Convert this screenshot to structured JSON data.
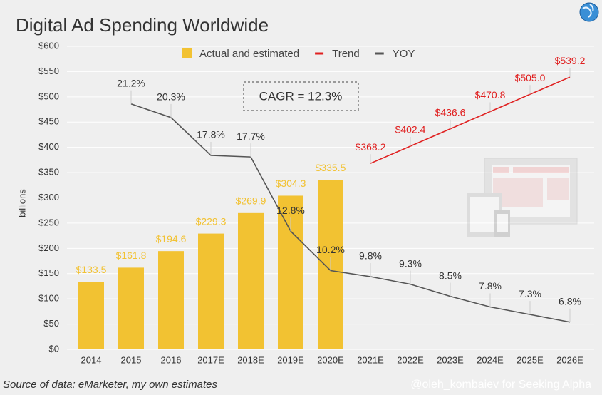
{
  "chart_data": {
    "type": "bar",
    "title": "Digital Ad Spending Worldwide",
    "y_label": "billions",
    "annotation": "CAGR = 12.3%",
    "source": "Source of data: eMarketer, my own estimates",
    "watermark": "@oleh_kombaiev for Seeking Alpha",
    "categories": [
      "2014",
      "2015",
      "2016",
      "2017E",
      "2018E",
      "2019E",
      "2020E",
      "2021E",
      "2022E",
      "2023E",
      "2024E",
      "2025E",
      "2026E"
    ],
    "series": [
      {
        "name": "Actual and estimated",
        "type": "bar",
        "color": "#f2c232",
        "values": [
          133.5,
          161.8,
          194.6,
          229.3,
          269.9,
          304.3,
          335.5,
          null,
          null,
          null,
          null,
          null,
          null
        ],
        "value_labels": [
          "$133.5",
          "$161.8",
          "$194.6",
          "$229.3",
          "$269.9",
          "$304.3",
          "$335.5",
          null,
          null,
          null,
          null,
          null,
          null
        ]
      },
      {
        "name": "Trend",
        "type": "line",
        "color": "#e02020",
        "values": [
          null,
          null,
          null,
          null,
          null,
          null,
          null,
          368.2,
          402.4,
          436.6,
          470.8,
          505.0,
          539.2
        ],
        "value_labels": [
          null,
          null,
          null,
          null,
          null,
          null,
          null,
          "$368.2",
          "$402.4",
          "$436.6",
          "$470.8",
          "$505.0",
          "$539.2"
        ]
      },
      {
        "name": "YOY",
        "type": "line",
        "axis": "y2",
        "color": "#555555",
        "values": [
          null,
          21.2,
          20.3,
          17.8,
          17.7,
          12.8,
          10.2,
          9.8,
          9.3,
          8.5,
          7.8,
          7.3,
          6.8
        ],
        "value_labels": [
          null,
          "21.2%",
          "20.3%",
          "17.8%",
          "17.7%",
          "12.8%",
          "10.2%",
          "9.8%",
          "9.3%",
          "8.5%",
          "7.8%",
          "7.3%",
          "6.8%"
        ]
      }
    ],
    "ylim": [
      0,
      600
    ],
    "yticks": [
      {
        "value": 0,
        "label": "$0"
      },
      {
        "value": 50,
        "label": "$50"
      },
      {
        "value": 100,
        "label": "$100"
      },
      {
        "value": 150,
        "label": "$150"
      },
      {
        "value": 200,
        "label": "$200"
      },
      {
        "value": 250,
        "label": "$250"
      },
      {
        "value": 300,
        "label": "$300"
      },
      {
        "value": 350,
        "label": "$350"
      },
      {
        "value": 400,
        "label": "$400"
      },
      {
        "value": 450,
        "label": "$450"
      },
      {
        "value": 500,
        "label": "$500"
      },
      {
        "value": 550,
        "label": "$550"
      },
      {
        "value": 600,
        "label": "$600"
      }
    ],
    "y2lim": [
      5.0,
      25.0
    ],
    "grid": true,
    "legend": "top"
  }
}
